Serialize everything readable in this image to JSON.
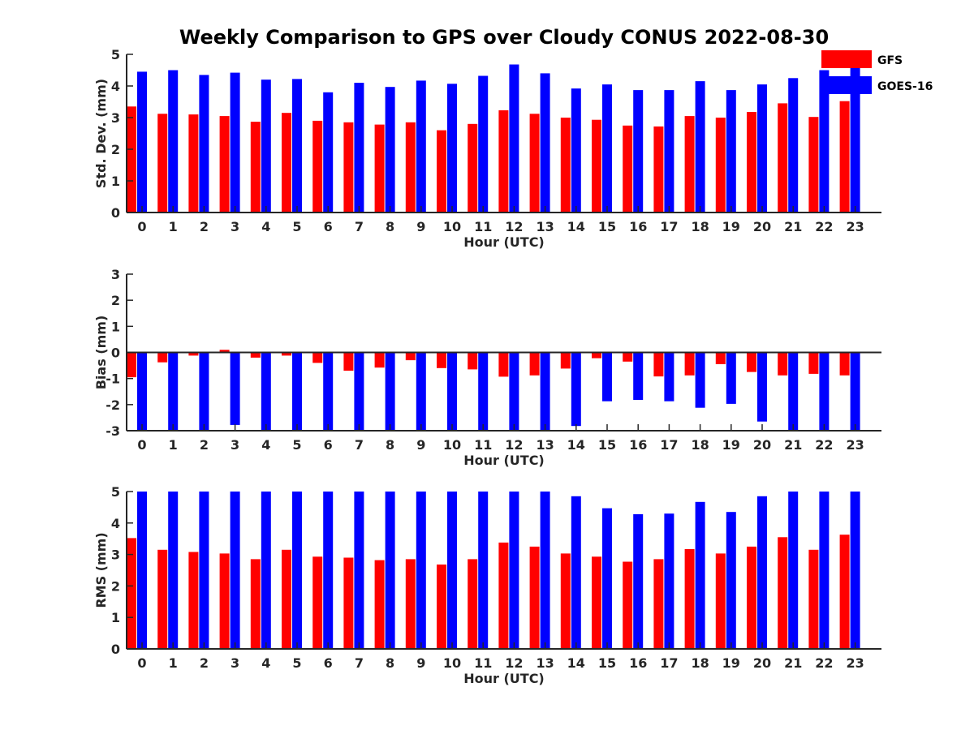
{
  "figure": {
    "title": "Weekly Comparison to GPS over Cloudy CONUS 2022-08-30",
    "colors": {
      "GFS": "#ff0000",
      "GOES-16": "#0000ff"
    },
    "legend": {
      "placement": "top-right",
      "entries": [
        "GFS",
        "GOES-16"
      ]
    }
  },
  "chart_data": [
    {
      "type": "bar",
      "id": "stddev",
      "xlabel": "Hour (UTC)",
      "ylabel": "Std. Dev. (mm)",
      "ylim": [
        0,
        5
      ],
      "yticks": [
        0,
        1,
        2,
        3,
        4,
        5
      ],
      "categories": [
        "0",
        "1",
        "2",
        "3",
        "4",
        "5",
        "6",
        "7",
        "8",
        "9",
        "10",
        "11",
        "12",
        "13",
        "14",
        "15",
        "16",
        "17",
        "18",
        "19",
        "20",
        "21",
        "22",
        "23"
      ],
      "series": [
        {
          "name": "GFS",
          "values": [
            3.35,
            3.12,
            3.1,
            3.05,
            2.87,
            3.15,
            2.9,
            2.85,
            2.78,
            2.85,
            2.6,
            2.8,
            3.23,
            3.12,
            3.0,
            2.93,
            2.75,
            2.72,
            3.05,
            3.0,
            3.18,
            3.45,
            3.02,
            3.52
          ]
        },
        {
          "name": "GOES-16",
          "values": [
            4.45,
            4.5,
            4.35,
            4.42,
            4.2,
            4.22,
            3.8,
            4.1,
            3.97,
            4.17,
            4.07,
            4.32,
            4.68,
            4.4,
            3.92,
            4.05,
            3.87,
            3.87,
            4.15,
            3.87,
            4.05,
            4.25,
            4.5,
            4.62
          ]
        }
      ]
    },
    {
      "type": "bar",
      "id": "bias",
      "xlabel": "Hour (UTC)",
      "ylabel": "Bias (mm)",
      "ylim": [
        -3,
        3
      ],
      "yticks": [
        -3,
        -2,
        -1,
        0,
        1,
        2,
        3
      ],
      "categories": [
        "0",
        "1",
        "2",
        "3",
        "4",
        "5",
        "6",
        "7",
        "8",
        "9",
        "10",
        "11",
        "12",
        "13",
        "14",
        "15",
        "16",
        "17",
        "18",
        "19",
        "20",
        "21",
        "22",
        "23"
      ],
      "series": [
        {
          "name": "GFS",
          "values": [
            -0.95,
            -0.38,
            -0.12,
            0.1,
            -0.2,
            -0.12,
            -0.4,
            -0.7,
            -0.58,
            -0.3,
            -0.6,
            -0.65,
            -0.93,
            -0.88,
            -0.62,
            -0.22,
            -0.35,
            -0.92,
            -0.88,
            -0.45,
            -0.75,
            -0.88,
            -0.82,
            -0.88
          ]
        },
        {
          "name": "GOES-16",
          "values": [
            -3.0,
            -3.0,
            -3.0,
            -2.78,
            -3.0,
            -3.0,
            -3.0,
            -3.0,
            -3.0,
            -3.0,
            -3.0,
            -3.0,
            -3.0,
            -3.0,
            -2.82,
            -1.87,
            -1.82,
            -1.87,
            -2.12,
            -1.97,
            -2.65,
            -3.0,
            -3.0,
            -3.0
          ]
        }
      ]
    },
    {
      "type": "bar",
      "id": "rms",
      "xlabel": "Hour (UTC)",
      "ylabel": "RMS (mm)",
      "ylim": [
        0,
        5
      ],
      "yticks": [
        0,
        1,
        2,
        3,
        4,
        5
      ],
      "categories": [
        "0",
        "1",
        "2",
        "3",
        "4",
        "5",
        "6",
        "7",
        "8",
        "9",
        "10",
        "11",
        "12",
        "13",
        "14",
        "15",
        "16",
        "17",
        "18",
        "19",
        "20",
        "21",
        "22",
        "23"
      ],
      "series": [
        {
          "name": "GFS",
          "values": [
            3.52,
            3.15,
            3.08,
            3.03,
            2.85,
            3.15,
            2.93,
            2.9,
            2.82,
            2.85,
            2.68,
            2.85,
            3.38,
            3.25,
            3.03,
            2.93,
            2.77,
            2.85,
            3.17,
            3.03,
            3.25,
            3.55,
            3.15,
            3.63
          ]
        },
        {
          "name": "GOES-16",
          "values": [
            5.0,
            5.0,
            5.0,
            5.0,
            5.0,
            5.0,
            5.0,
            5.0,
            5.0,
            5.0,
            5.0,
            5.0,
            5.0,
            5.0,
            4.85,
            4.47,
            4.28,
            4.3,
            4.67,
            4.35,
            4.85,
            5.0,
            5.0,
            5.0
          ]
        }
      ]
    }
  ]
}
